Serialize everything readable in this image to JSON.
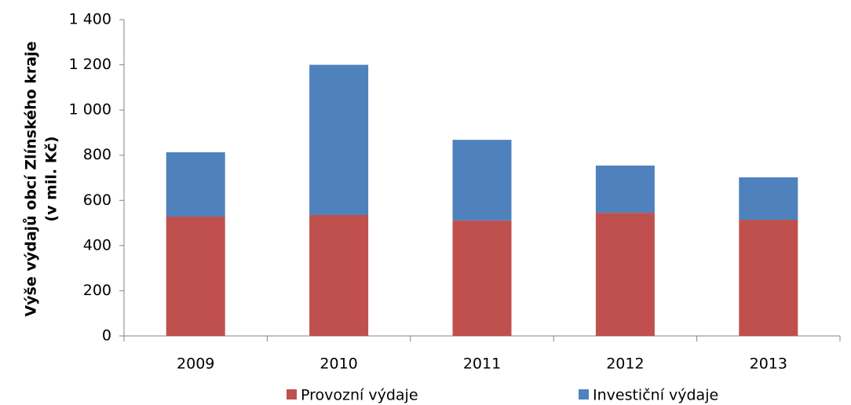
{
  "chart_data": {
    "type": "stacked_bar",
    "ylabel": [
      "Výše výdajů obcí Zlínského kraje",
      "(v mil. Kč)"
    ],
    "categories": [
      "2009",
      "2010",
      "2011",
      "2012",
      "2013"
    ],
    "series": [
      {
        "name": "Provozní výdaje",
        "color": "#c0504d",
        "values": [
          528,
          535,
          511,
          545,
          514
        ]
      },
      {
        "name": "Investiční výdaje",
        "color": "#4f81bd",
        "values": [
          285,
          665,
          357,
          209,
          188
        ]
      }
    ],
    "ylim": [
      0,
      1400
    ],
    "yticks": [
      0,
      200,
      400,
      600,
      800,
      {
        "value": 1000,
        "label": "1 000"
      },
      {
        "value": 1200,
        "label": "1 200"
      },
      {
        "value": 1400,
        "label": "1 400"
      }
    ],
    "grid": false,
    "legend": "bottom"
  }
}
